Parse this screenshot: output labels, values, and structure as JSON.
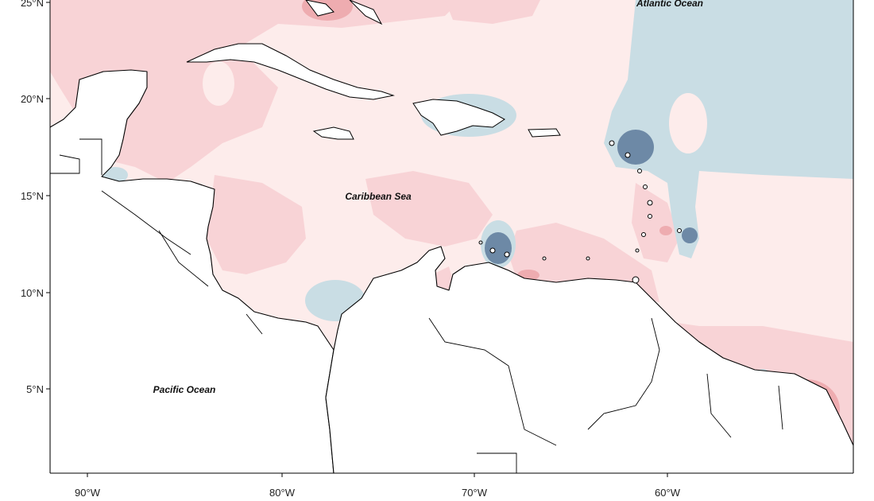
{
  "map": {
    "region": "Caribbean",
    "ocean_labels": {
      "atlantic": "Atlantic Ocean",
      "caribbean": "Caribbean Sea",
      "pacific": "Pacific Ocean"
    },
    "y_axis": {
      "ticks": [
        "25°N",
        "20°N",
        "15°N",
        "10°N",
        "5°N"
      ]
    },
    "x_axis": {
      "ticks": [
        "90°W",
        "80°W",
        "70°W",
        "60°W"
      ]
    },
    "colors": {
      "very_light_pink": "#fdeceb",
      "light_pink": "#f8d3d6",
      "medium_pink": "#eeacb0",
      "light_blue": "#c9dde4",
      "dark_blue": "#6d89a6",
      "land": "#ffffff",
      "coastline": "#000000"
    }
  }
}
